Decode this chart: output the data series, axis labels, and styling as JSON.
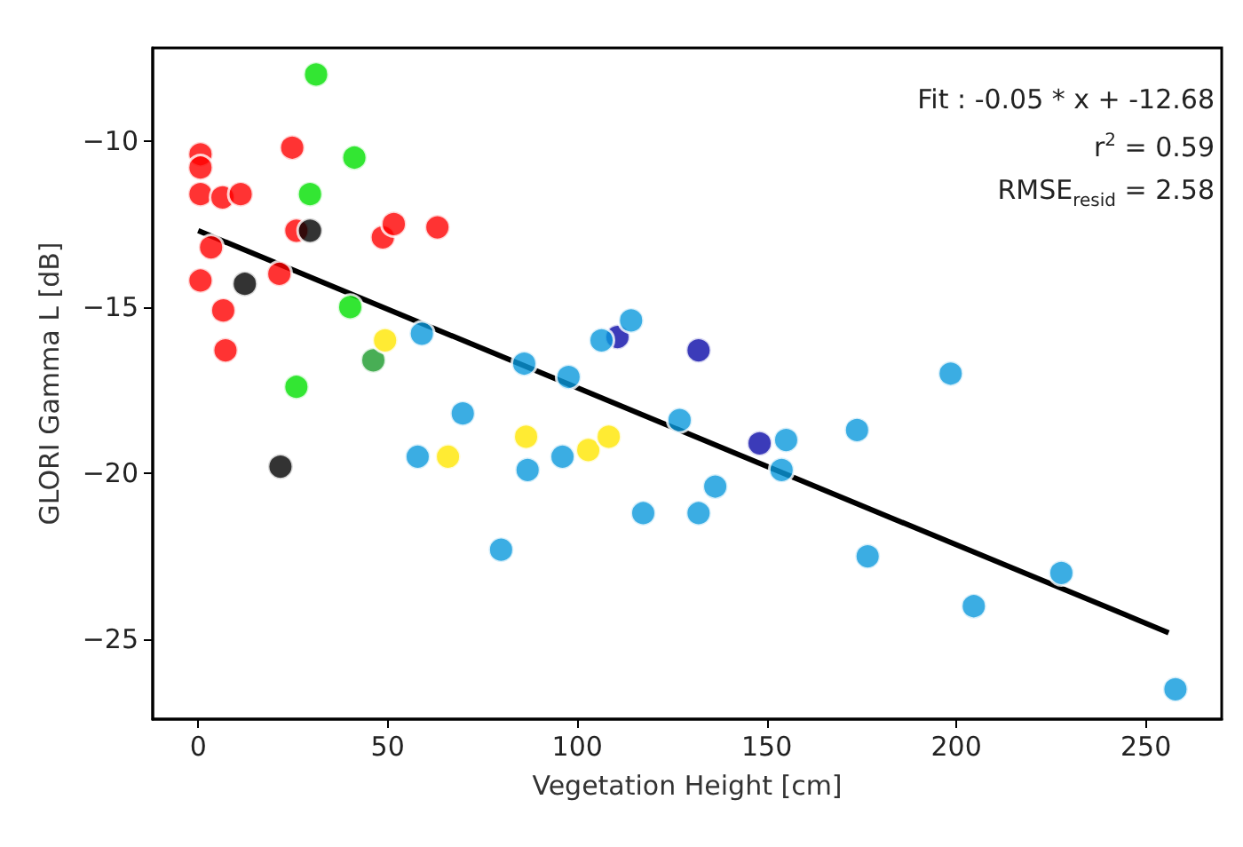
{
  "chart_data": {
    "type": "scatter",
    "xlabel": "Vegetation Height [cm]",
    "ylabel": "GLORI Gamma L [dB]",
    "xlim": [
      -12,
      270
    ],
    "xticks": [
      0,
      50,
      100,
      150,
      200,
      250
    ],
    "ylim": [
      -27.4,
      -7.2
    ],
    "yticks": [
      -10,
      -15,
      -20,
      -25
    ],
    "grid": false,
    "marker": "circle",
    "annotations": [
      "Fit : -0.05 * x + -12.68",
      "r$^{2}$ = 0.59",
      "RMSE$_{resid}$ = 2.58"
    ],
    "series": [
      {
        "color": "#ff0000",
        "x": [
          0.6,
          0.6,
          0.6,
          6.4,
          11.2,
          24.8,
          25.9,
          3.4,
          0.6,
          6.6,
          7.2,
          21.4,
          48.7,
          51.6,
          63.1
        ],
        "values": [
          -10.4,
          -10.8,
          -11.6,
          -11.7,
          -11.6,
          -10.2,
          -12.7,
          -13.2,
          -14.2,
          -15.1,
          -16.3,
          -14.0,
          -12.9,
          -12.5,
          -12.6
        ]
      },
      {
        "color": "#00e000",
        "x": [
          31.1,
          41.2,
          29.5,
          40.1,
          25.9
        ],
        "values": [
          -8.0,
          -10.5,
          -11.6,
          -15.0,
          -17.4
        ]
      },
      {
        "color": "#1a9a2a",
        "x": [
          46.2
        ],
        "values": [
          -16.6
        ]
      },
      {
        "color": "#000000",
        "x": [
          29.5,
          12.3,
          21.7
        ],
        "values": [
          -12.7,
          -14.3,
          -19.8
        ]
      },
      {
        "color": "#ffe600",
        "x": [
          49.3,
          65.9,
          86.5,
          102.9,
          108.3
        ],
        "values": [
          -16.0,
          -19.5,
          -18.9,
          -19.3,
          -18.9
        ]
      },
      {
        "color": "#0a0aa8",
        "x": [
          110.6,
          132.0,
          148.1
        ],
        "values": [
          -15.9,
          -16.3,
          -19.1
        ]
      },
      {
        "color": "#0a98dc",
        "x": [
          59.0,
          69.8,
          57.9,
          86.0,
          97.7,
          106.4,
          114.2,
          86.9,
          96.1,
          79.9,
          117.4,
          132.0,
          136.4,
          127.0,
          155.1,
          153.9,
          173.8,
          176.6,
          198.5,
          204.6,
          227.7,
          257.8
        ],
        "values": [
          -15.8,
          -18.2,
          -19.5,
          -16.7,
          -17.1,
          -16.0,
          -15.4,
          -19.9,
          -19.5,
          -22.3,
          -21.2,
          -21.2,
          -20.4,
          -18.4,
          -19.0,
          -19.9,
          -18.7,
          -22.5,
          -17.0,
          -24.0,
          -23.0,
          -26.5
        ]
      },
      {
        "type": "line",
        "color": "#000000",
        "marker": "none",
        "line_style": "solid",
        "x": [
          0,
          256
        ],
        "values": [
          -12.7,
          -24.8
        ]
      }
    ]
  }
}
